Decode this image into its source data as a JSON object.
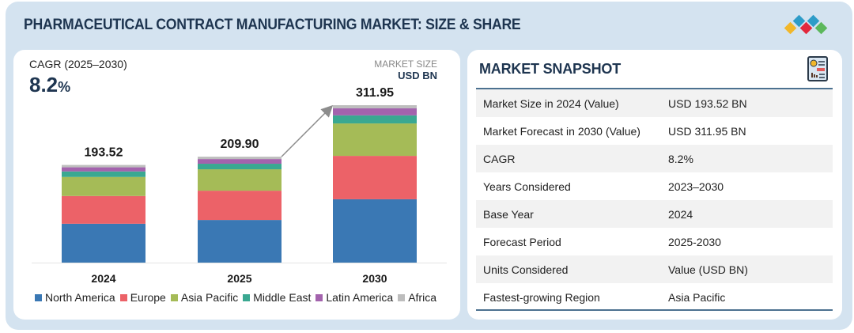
{
  "header": {
    "title": "PHARMACEUTICAL CONTRACT MANUFACTURING MARKET: SIZE & SHARE",
    "logo_colors": [
      "#f2b72a",
      "#2e9cc8",
      "#e2283c",
      "#2e9cc8",
      "#5cb85c"
    ]
  },
  "chart_panel": {
    "cagr_label": "CAGR (2025–2030)",
    "cagr_value": "8.2",
    "cagr_unit": "%",
    "market_size_label": "MARKET SIZE",
    "market_size_unit": "USD BN"
  },
  "chart_data": {
    "type": "bar",
    "stacked": true,
    "title": "Pharmaceutical Contract Manufacturing Market: Size & Share",
    "xlabel": "",
    "ylabel": "Market Size (USD BN)",
    "categories": [
      "2024",
      "2025",
      "2030"
    ],
    "totals": [
      193.52,
      209.9,
      311.95
    ],
    "total_labels": [
      "193.52",
      "209.90",
      "311.95"
    ],
    "ylim": [
      0,
      320
    ],
    "grid": false,
    "legend_position": "bottom",
    "series": [
      {
        "name": "North America",
        "color": "#3a78b4",
        "values": [
          77.0,
          84.5,
          125.5
        ]
      },
      {
        "name": "Europe",
        "color": "#ec6268",
        "values": [
          55.0,
          58.0,
          86.0
        ]
      },
      {
        "name": "Asia Pacific",
        "color": "#a5bb57",
        "values": [
          37.7,
          42.4,
          64.3
        ]
      },
      {
        "name": "Middle East",
        "color": "#3aa891",
        "values": [
          11.0,
          11.0,
          16.0
        ]
      },
      {
        "name": "Latin America",
        "color": "#a363ad",
        "values": [
          8.1,
          9.3,
          14.0
        ]
      },
      {
        "name": "Africa",
        "color": "#bdbdbd",
        "values": [
          4.72,
          4.7,
          6.15
        ]
      }
    ],
    "annotations": [
      "growth arrow from 2025 to 2030"
    ]
  },
  "snapshot": {
    "title": "MARKET SNAPSHOT",
    "icon": "report-document-icon",
    "rows": [
      {
        "label": "Market Size in 2024 (Value)",
        "value": "USD 193.52  BN"
      },
      {
        "label": "Market Forecast in 2030 (Value)",
        "value": "USD 311.95 BN"
      },
      {
        "label": "CAGR",
        "value": "8.2%"
      },
      {
        "label": "Years Considered",
        "value": "2023–2030"
      },
      {
        "label": "Base Year",
        "value": "2024"
      },
      {
        "label": "Forecast Period",
        "value": "2025-2030"
      },
      {
        "label": "Units Considered",
        "value": "Value (USD BN)"
      },
      {
        "label": "Fastest-growing Region",
        "value": "Asia Pacific"
      }
    ]
  }
}
